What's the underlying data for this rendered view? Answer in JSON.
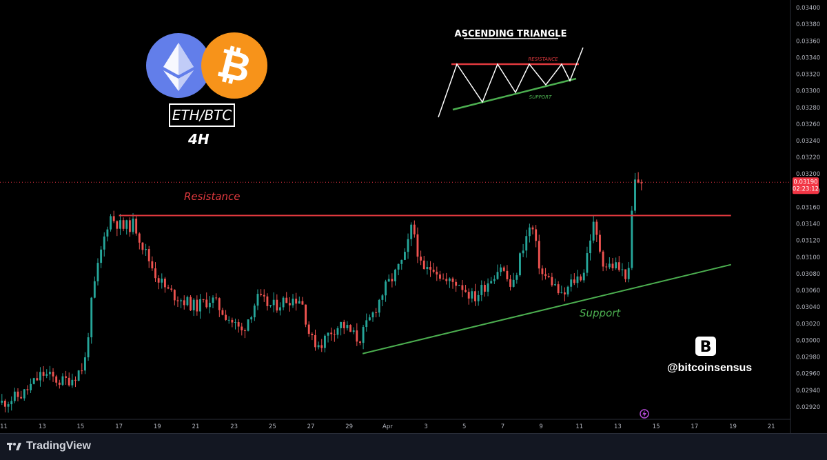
{
  "overlay": {
    "pair": "ETH/BTC",
    "timeframe": "4H",
    "handle": "@bitcoinsensus",
    "inset_title": "ASCENDING TRIANGLE",
    "inset_resistance": "RESISTANCE",
    "inset_support": "SUPPORT",
    "resistance_label": "Resistance",
    "support_label": "Support",
    "brand_logo_letter": "B"
  },
  "footer": {
    "brand": "TradingView"
  },
  "colors": {
    "up": "#26a69a",
    "down": "#ef5350",
    "resistance": "#e0393e",
    "support": "#4caf50",
    "eth_logo": "#627eea",
    "btc_logo": "#f7931a",
    "price_tag": "#f23645"
  },
  "chart_data": {
    "type": "candlestick",
    "symbol": "ETH/BTC",
    "timeframe": "4H",
    "last_price": "0.03190",
    "countdown": "02:23:12",
    "y_ticks": [
      "0.02920",
      "0.02940",
      "0.02960",
      "0.02980",
      "0.03000",
      "0.03020",
      "0.03040",
      "0.03060",
      "0.03080",
      "0.03100",
      "0.03120",
      "0.03140",
      "0.03160",
      "0.03180",
      "0.03200",
      "0.03220",
      "0.03240",
      "0.03260",
      "0.03280",
      "0.03300",
      "0.03320",
      "0.03340",
      "0.03360",
      "0.03380",
      "0.03400"
    ],
    "ylim": [
      0.02905,
      0.03405
    ],
    "x_ticks": [
      {
        "label": "11",
        "day": 11
      },
      {
        "label": "13",
        "day": 13
      },
      {
        "label": "15",
        "day": 15
      },
      {
        "label": "17",
        "day": 17
      },
      {
        "label": "19",
        "day": 19
      },
      {
        "label": "21",
        "day": 21
      },
      {
        "label": "23",
        "day": 23
      },
      {
        "label": "25",
        "day": 25
      },
      {
        "label": "27",
        "day": 27
      },
      {
        "label": "29",
        "day": 29
      },
      {
        "label": "Apr",
        "day": 31
      },
      {
        "label": "3",
        "day": 33
      },
      {
        "label": "5",
        "day": 35
      },
      {
        "label": "7",
        "day": 37
      },
      {
        "label": "9",
        "day": 39
      },
      {
        "label": "11",
        "day": 41
      },
      {
        "label": "13",
        "day": 43
      },
      {
        "label": "15",
        "day": 45
      },
      {
        "label": "17",
        "day": 47
      },
      {
        "label": "19",
        "day": 49
      },
      {
        "label": "21",
        "day": 51
      }
    ],
    "xlim": [
      10.8,
      52
    ],
    "resistance_line": {
      "value": 0.0315,
      "from_day": 17,
      "to_day": 48.9
    },
    "support_line": {
      "from": [
        29.7,
        0.02984
      ],
      "to": [
        48.9,
        0.03091
      ]
    },
    "path": [
      [
        10.9,
        0.02925
      ],
      [
        12.0,
        0.02935
      ],
      [
        13.0,
        0.0296
      ],
      [
        14.0,
        0.0295
      ],
      [
        14.6,
        0.02955
      ],
      [
        15.2,
        0.0297
      ],
      [
        15.6,
        0.0305
      ],
      [
        16.0,
        0.031
      ],
      [
        16.5,
        0.0315
      ],
      [
        17.2,
        0.03135
      ],
      [
        17.8,
        0.0314
      ],
      [
        18.3,
        0.0311
      ],
      [
        18.9,
        0.0308
      ],
      [
        19.5,
        0.0306
      ],
      [
        20.2,
        0.0305
      ],
      [
        21.0,
        0.0304
      ],
      [
        21.8,
        0.0305
      ],
      [
        22.6,
        0.0303
      ],
      [
        23.4,
        0.0301
      ],
      [
        24.2,
        0.0305
      ],
      [
        25.0,
        0.0304
      ],
      [
        25.8,
        0.0305
      ],
      [
        26.5,
        0.0305
      ],
      [
        27.0,
        0.03
      ],
      [
        27.5,
        0.02995
      ],
      [
        28.0,
        0.0301
      ],
      [
        28.6,
        0.0302
      ],
      [
        29.5,
        0.03
      ],
      [
        30.2,
        0.0303
      ],
      [
        30.8,
        0.0306
      ],
      [
        31.4,
        0.0308
      ],
      [
        31.9,
        0.031
      ],
      [
        32.3,
        0.0314
      ],
      [
        32.8,
        0.0308
      ],
      [
        33.4,
        0.0309
      ],
      [
        34.0,
        0.0307
      ],
      [
        34.7,
        0.0307
      ],
      [
        35.5,
        0.0305
      ],
      [
        36.2,
        0.0307
      ],
      [
        36.9,
        0.0309
      ],
      [
        37.5,
        0.0306
      ],
      [
        38.0,
        0.0311
      ],
      [
        38.5,
        0.0314
      ],
      [
        39.0,
        0.0308
      ],
      [
        39.6,
        0.0307
      ],
      [
        40.1,
        0.0305
      ],
      [
        40.6,
        0.0307
      ],
      [
        41.2,
        0.0308
      ],
      [
        41.7,
        0.0314
      ],
      [
        42.3,
        0.0309
      ],
      [
        42.9,
        0.0309
      ],
      [
        43.3,
        0.0308
      ],
      [
        43.6,
        0.0308
      ],
      [
        43.8,
        0.0319
      ],
      [
        44.3,
        0.03192
      ]
    ],
    "seed": 11
  }
}
